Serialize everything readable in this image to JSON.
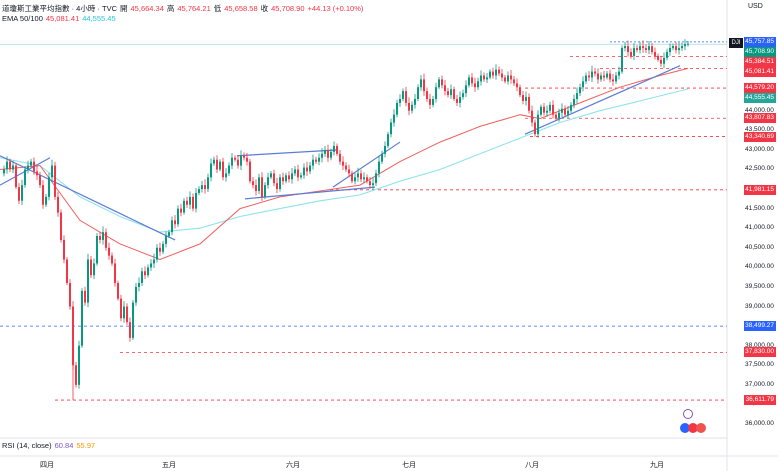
{
  "header": {
    "title": "道瓊斯工業平均指數 · 4小時 · TVC",
    "open_label": "開",
    "open": "45,664.34",
    "high_label": "高",
    "high": "45,764.21",
    "low_label": "低",
    "low": "45,658.58",
    "close_label": "收",
    "close": "45,708.90",
    "change": "+44.13 (+0.10%)"
  },
  "ema": {
    "label": "EMA 50/100",
    "v1": "45,081.41",
    "v2": "44,555.45"
  },
  "rsi": {
    "label": "RSI (14, close)",
    "v1": "60.84",
    "v2": "55.97"
  },
  "currency": "USD",
  "symbol_tag": "DJI",
  "colors": {
    "up": "#089981",
    "down": "#f23645",
    "ema_fast": "#f0605d",
    "ema_slow": "#8fe3ea",
    "trendline": "#5b7bd5",
    "level_red": "#f23645",
    "level_blue": "#2962ff"
  },
  "price_tags": [
    {
      "value": 45757.85,
      "label": "45,757.85",
      "color": "#2962ff"
    },
    {
      "value": 45708.9,
      "label": "45,708.90",
      "color": "#089981"
    },
    {
      "value": 45384.51,
      "label": "45,384.51",
      "color": "#f23645"
    },
    {
      "value": 45081.41,
      "label": "45,081.41",
      "color": "#f23645"
    },
    {
      "value": 44579.2,
      "label": "44,579.20",
      "color": "#f23645"
    },
    {
      "value": 44555.45,
      "label": "44,555.45",
      "color": "#26a69a"
    },
    {
      "value": 43807.83,
      "label": "43,807.83",
      "color": "#f23645"
    },
    {
      "value": 43340.69,
      "label": "43,340.69",
      "color": "#f23645"
    },
    {
      "value": 41981.15,
      "label": "41,981.15",
      "color": "#f23645"
    },
    {
      "value": 38499.27,
      "label": "38,499.27",
      "color": "#2962ff"
    },
    {
      "value": 37830.0,
      "label": "37,830.00",
      "color": "#f23645"
    },
    {
      "value": 36611.79,
      "label": "36,611.79",
      "color": "#f23645"
    }
  ],
  "chart_data": {
    "type": "candlestick",
    "y_ticks": [
      "36,000.00",
      "36,500.00",
      "37,000.00",
      "37,500.00",
      "38,000.00",
      "38,500.00",
      "39,000.00",
      "39,500.00",
      "40,000.00",
      "40,500.00",
      "41,000.00",
      "41,500.00",
      "42,000.00",
      "42,500.00",
      "43,000.00",
      "43,500.00",
      "44,000.00",
      "44,500.00",
      "45,000.00",
      "45,500.00"
    ],
    "x_ticks": [
      "四月",
      "五月",
      "六月",
      "七月",
      "八月",
      "九月"
    ],
    "ylim": [
      35800,
      46100
    ],
    "price_path": [
      [
        0,
        42400
      ],
      [
        4,
        42500
      ],
      [
        7,
        42700
      ],
      [
        10,
        42500
      ],
      [
        13,
        42600
      ],
      [
        16,
        42050
      ],
      [
        19,
        41700
      ],
      [
        22,
        42100
      ],
      [
        25,
        42500
      ],
      [
        28,
        42600
      ],
      [
        31,
        42700
      ],
      [
        34,
        42450
      ],
      [
        37,
        42350
      ],
      [
        40,
        42100
      ],
      [
        43,
        41600
      ],
      [
        46,
        41800
      ],
      [
        49,
        42300
      ],
      [
        52,
        42600
      ],
      [
        55,
        41800
      ],
      [
        58,
        41400
      ],
      [
        61,
        40700
      ],
      [
        64,
        40200
      ],
      [
        67,
        39600
      ],
      [
        70,
        39000
      ],
      [
        73,
        37500
      ],
      [
        76,
        37000
      ],
      [
        79,
        38000
      ],
      [
        82,
        39400
      ],
      [
        85,
        39100
      ],
      [
        88,
        40200
      ],
      [
        91,
        39800
      ],
      [
        94,
        40100
      ],
      [
        97,
        40800
      ],
      [
        100,
        40700
      ],
      [
        103,
        40900
      ],
      [
        106,
        40500
      ],
      [
        109,
        40300
      ],
      [
        112,
        40100
      ],
      [
        115,
        39600
      ],
      [
        118,
        39200
      ],
      [
        121,
        38700
      ],
      [
        124,
        39000
      ],
      [
        127,
        38600
      ],
      [
        130,
        38200
      ],
      [
        133,
        39100
      ],
      [
        136,
        39500
      ],
      [
        139,
        39600
      ],
      [
        142,
        39900
      ],
      [
        145,
        39800
      ],
      [
        148,
        40000
      ],
      [
        151,
        40100
      ],
      [
        154,
        40200
      ],
      [
        157,
        40500
      ],
      [
        160,
        40400
      ],
      [
        163,
        40600
      ],
      [
        166,
        40800
      ],
      [
        169,
        40900
      ],
      [
        172,
        41200
      ],
      [
        175,
        41100
      ],
      [
        178,
        41500
      ],
      [
        181,
        41400
      ],
      [
        184,
        41700
      ],
      [
        187,
        41600
      ],
      [
        190,
        41800
      ],
      [
        193,
        41500
      ],
      [
        196,
        41900
      ],
      [
        199,
        42000
      ],
      [
        202,
        42100
      ],
      [
        205,
        42000
      ],
      [
        208,
        42300
      ],
      [
        211,
        42650
      ],
      [
        214,
        42750
      ],
      [
        217,
        42500
      ],
      [
        220,
        42700
      ],
      [
        223,
        42300
      ],
      [
        226,
        42400
      ],
      [
        229,
        42600
      ],
      [
        232,
        42800
      ],
      [
        235,
        42750
      ],
      [
        238,
        42600
      ],
      [
        241,
        42850
      ],
      [
        244,
        42800
      ],
      [
        247,
        42700
      ],
      [
        250,
        42200
      ],
      [
        253,
        42100
      ],
      [
        256,
        41950
      ],
      [
        259,
        42300
      ],
      [
        262,
        41800
      ],
      [
        265,
        42100
      ],
      [
        268,
        42300
      ],
      [
        271,
        42400
      ],
      [
        274,
        42150
      ],
      [
        277,
        42000
      ],
      [
        280,
        42300
      ],
      [
        283,
        42200
      ],
      [
        286,
        42350
      ],
      [
        289,
        42250
      ],
      [
        292,
        42400
      ],
      [
        295,
        42500
      ],
      [
        298,
        42300
      ],
      [
        301,
        42350
      ],
      [
        304,
        42550
      ],
      [
        307,
        42450
      ],
      [
        310,
        42600
      ],
      [
        313,
        42750
      ],
      [
        316,
        42700
      ],
      [
        319,
        42800
      ],
      [
        322,
        42900
      ],
      [
        325,
        43000
      ],
      [
        328,
        42800
      ],
      [
        331,
        42950
      ],
      [
        334,
        43100
      ],
      [
        337,
        42900
      ],
      [
        340,
        42700
      ],
      [
        343,
        42600
      ],
      [
        346,
        42500
      ],
      [
        349,
        42400
      ],
      [
        352,
        42200
      ],
      [
        355,
        42300
      ],
      [
        358,
        42400
      ],
      [
        361,
        42250
      ],
      [
        364,
        42300
      ],
      [
        367,
        42200
      ],
      [
        370,
        42100
      ],
      [
        373,
        42150
      ],
      [
        376,
        42400
      ],
      [
        379,
        42700
      ],
      [
        382,
        42900
      ],
      [
        385,
        43100
      ],
      [
        388,
        43400
      ],
      [
        391,
        43700
      ],
      [
        394,
        43900
      ],
      [
        397,
        44200
      ],
      [
        400,
        44300
      ],
      [
        403,
        44500
      ],
      [
        406,
        44200
      ],
      [
        409,
        44000
      ],
      [
        412,
        44150
      ],
      [
        415,
        44300
      ],
      [
        418,
        44600
      ],
      [
        421,
        44800
      ],
      [
        424,
        44500
      ],
      [
        427,
        44300
      ],
      [
        430,
        44150
      ],
      [
        433,
        44300
      ],
      [
        436,
        44600
      ],
      [
        439,
        44800
      ],
      [
        442,
        44650
      ],
      [
        445,
        44500
      ],
      [
        448,
        44400
      ],
      [
        451,
        44550
      ],
      [
        454,
        44300
      ],
      [
        457,
        44200
      ],
      [
        460,
        44350
      ],
      [
        463,
        44450
      ],
      [
        466,
        44650
      ],
      [
        469,
        44850
      ],
      [
        472,
        44700
      ],
      [
        475,
        44600
      ],
      [
        478,
        44750
      ],
      [
        481,
        44900
      ],
      [
        484,
        44800
      ],
      [
        487,
        44850
      ],
      [
        490,
        45000
      ],
      [
        493,
        44900
      ],
      [
        496,
        45050
      ],
      [
        499,
        44950
      ],
      [
        502,
        44850
      ],
      [
        505,
        44750
      ],
      [
        508,
        44900
      ],
      [
        511,
        44800
      ],
      [
        514,
        44700
      ],
      [
        517,
        44600
      ],
      [
        520,
        44400
      ],
      [
        523,
        44250
      ],
      [
        526,
        44350
      ],
      [
        529,
        44000
      ],
      [
        532,
        43700
      ],
      [
        535,
        43400
      ],
      [
        538,
        43900
      ],
      [
        541,
        44100
      ],
      [
        544,
        43950
      ],
      [
        547,
        44000
      ],
      [
        550,
        44150
      ],
      [
        553,
        43900
      ],
      [
        556,
        43800
      ],
      [
        559,
        43950
      ],
      [
        562,
        44050
      ],
      [
        565,
        43900
      ],
      [
        568,
        44000
      ],
      [
        571,
        44150
      ],
      [
        574,
        44300
      ],
      [
        577,
        44450
      ],
      [
        580,
        44600
      ],
      [
        583,
        44750
      ],
      [
        586,
        44900
      ],
      [
        589,
        44850
      ],
      [
        592,
        45000
      ],
      [
        595,
        44950
      ],
      [
        598,
        44800
      ],
      [
        601,
        44900
      ],
      [
        604,
        44850
      ],
      [
        607,
        44950
      ],
      [
        610,
        44800
      ],
      [
        613,
        44750
      ],
      [
        616,
        44900
      ],
      [
        619,
        45000
      ],
      [
        622,
        45600
      ],
      [
        625,
        45650
      ],
      [
        628,
        45500
      ],
      [
        631,
        45400
      ],
      [
        634,
        45600
      ],
      [
        637,
        45550
      ],
      [
        640,
        45650
      ],
      [
        643,
        45600
      ],
      [
        646,
        45550
      ],
      [
        649,
        45650
      ],
      [
        652,
        45500
      ],
      [
        655,
        45400
      ],
      [
        658,
        45300
      ],
      [
        661,
        45200
      ],
      [
        664,
        45350
      ],
      [
        667,
        45500
      ],
      [
        670,
        45600
      ],
      [
        673,
        45650
      ],
      [
        676,
        45550
      ],
      [
        679,
        45600
      ],
      [
        682,
        45650
      ],
      [
        685,
        45700
      ],
      [
        688,
        45709
      ]
    ],
    "ema_fast_path": [
      [
        0,
        42500
      ],
      [
        40,
        42600
      ],
      [
        80,
        41200
      ],
      [
        120,
        40600
      ],
      [
        160,
        40200
      ],
      [
        200,
        40600
      ],
      [
        240,
        41500
      ],
      [
        280,
        41800
      ],
      [
        320,
        41950
      ],
      [
        360,
        42100
      ],
      [
        400,
        42700
      ],
      [
        440,
        43200
      ],
      [
        480,
        43600
      ],
      [
        520,
        43900
      ],
      [
        540,
        43800
      ],
      [
        580,
        44200
      ],
      [
        620,
        44600
      ],
      [
        660,
        44900
      ],
      [
        688,
        45081
      ]
    ],
    "ema_slow_path": [
      [
        0,
        42800
      ],
      [
        40,
        42600
      ],
      [
        80,
        41800
      ],
      [
        120,
        41300
      ],
      [
        160,
        40900
      ],
      [
        200,
        41000
      ],
      [
        240,
        41300
      ],
      [
        280,
        41500
      ],
      [
        320,
        41700
      ],
      [
        360,
        41850
      ],
      [
        400,
        42200
      ],
      [
        440,
        42500
      ],
      [
        480,
        42900
      ],
      [
        520,
        43300
      ],
      [
        560,
        43700
      ],
      [
        600,
        44000
      ],
      [
        640,
        44250
      ],
      [
        688,
        44555
      ]
    ]
  }
}
